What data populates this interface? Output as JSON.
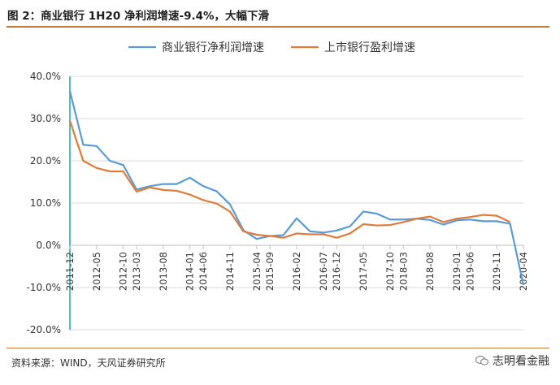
{
  "header": {
    "title": "图 2：商业银行 1H20 净利润增速-9.4%，大幅下滑"
  },
  "footer": {
    "source": "资料来源：WIND，天风证券研究所",
    "brand": "志明看金融"
  },
  "colors": {
    "series_blue": "#5b9bd5",
    "series_orange": "#e07b39",
    "axis_teal": "#26b0b0",
    "rule_brown": "#c87a3a"
  },
  "chart_data": {
    "type": "line",
    "title": "",
    "xlabel": "",
    "ylabel": "",
    "ylim": [
      -0.2,
      0.4
    ],
    "yticks": [
      "40.0%",
      "30.0%",
      "20.0%",
      "10.0%",
      "0.0%",
      "-10.0%",
      "-20.0%"
    ],
    "grid": "horizontal",
    "legend_position": "top",
    "x": [
      "2011-12",
      "2012-03",
      "2012-06",
      "2012-09",
      "2012-12",
      "2013-03",
      "2013-06",
      "2013-09",
      "2013-12",
      "2014-03",
      "2014-06",
      "2014-09",
      "2014-12",
      "2015-03",
      "2015-06",
      "2015-09",
      "2015-12",
      "2016-03",
      "2016-06",
      "2016-09",
      "2016-12",
      "2017-03",
      "2017-06",
      "2017-09",
      "2017-12",
      "2018-03",
      "2018-06",
      "2018-09",
      "2018-12",
      "2019-03",
      "2019-06",
      "2019-09",
      "2019-12",
      "2020-03",
      "2020-06"
    ],
    "xticks": [
      "2011-12",
      "2012-05",
      "2012-10",
      "2013-03",
      "2013-08",
      "2014-01",
      "2014-06",
      "2014-11",
      "2015-04",
      "2015-09",
      "2016-02",
      "2016-07",
      "2016-12",
      "2017-05",
      "2017-10",
      "2018-03",
      "2018-08",
      "2019-01",
      "2019-06",
      "2019-11",
      "2020-04"
    ],
    "series": [
      {
        "name": "商业银行净利润增速",
        "color": "#5b9bd5",
        "values": [
          0.365,
          0.238,
          0.235,
          0.2,
          0.19,
          0.132,
          0.14,
          0.145,
          0.145,
          0.16,
          0.14,
          0.128,
          0.097,
          0.036,
          0.015,
          0.022,
          0.024,
          0.064,
          0.033,
          0.03,
          0.035,
          0.045,
          0.08,
          0.075,
          0.061,
          0.061,
          0.063,
          0.06,
          0.049,
          0.059,
          0.061,
          0.057,
          0.057,
          0.051,
          -0.094
        ]
      },
      {
        "name": "上市银行盈利增速",
        "color": "#e07b39",
        "values": [
          0.295,
          0.2,
          0.183,
          0.175,
          0.175,
          0.127,
          0.137,
          0.131,
          0.129,
          0.12,
          0.107,
          0.099,
          0.08,
          0.033,
          0.025,
          0.022,
          0.018,
          0.028,
          0.026,
          0.026,
          0.018,
          0.028,
          0.05,
          0.047,
          0.048,
          0.055,
          0.063,
          0.068,
          0.055,
          0.063,
          0.067,
          0.072,
          0.07,
          0.055,
          null
        ]
      }
    ]
  }
}
